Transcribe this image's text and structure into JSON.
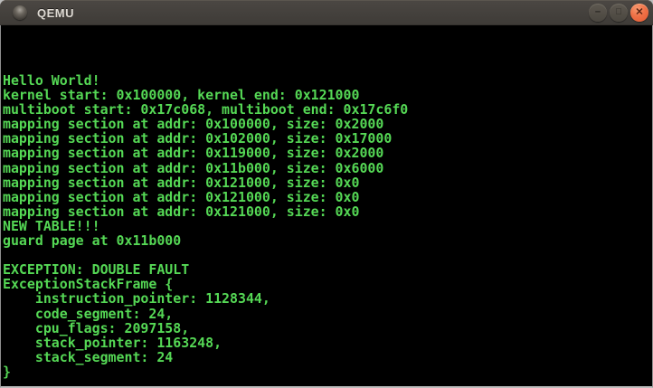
{
  "titlebar": {
    "title": "QEMU",
    "icon_name": "qemu-window-icon",
    "controls": [
      {
        "name": "minimize",
        "glyph": "−"
      },
      {
        "name": "maximize",
        "glyph": "□"
      },
      {
        "name": "close",
        "glyph": "✕"
      }
    ]
  },
  "terminal": {
    "colors": {
      "background": "#000000",
      "text": "#55d855"
    },
    "lines": [
      "Hello World!",
      "kernel start: 0x100000, kernel end: 0x121000",
      "multiboot start: 0x17c068, multiboot end: 0x17c6f0",
      "mapping section at addr: 0x100000, size: 0x2000",
      "mapping section at addr: 0x102000, size: 0x17000",
      "mapping section at addr: 0x119000, size: 0x2000",
      "mapping section at addr: 0x11b000, size: 0x6000",
      "mapping section at addr: 0x121000, size: 0x0",
      "mapping section at addr: 0x121000, size: 0x0",
      "mapping section at addr: 0x121000, size: 0x0",
      "NEW TABLE!!!",
      "guard page at 0x11b000",
      "",
      "EXCEPTION: DOUBLE FAULT",
      "ExceptionStackFrame {",
      "    instruction_pointer: 1128344,",
      "    code_segment: 24,",
      "    cpu_flags: 2097158,",
      "    stack_pointer: 1163248,",
      "    stack_segment: 24",
      "}"
    ]
  }
}
